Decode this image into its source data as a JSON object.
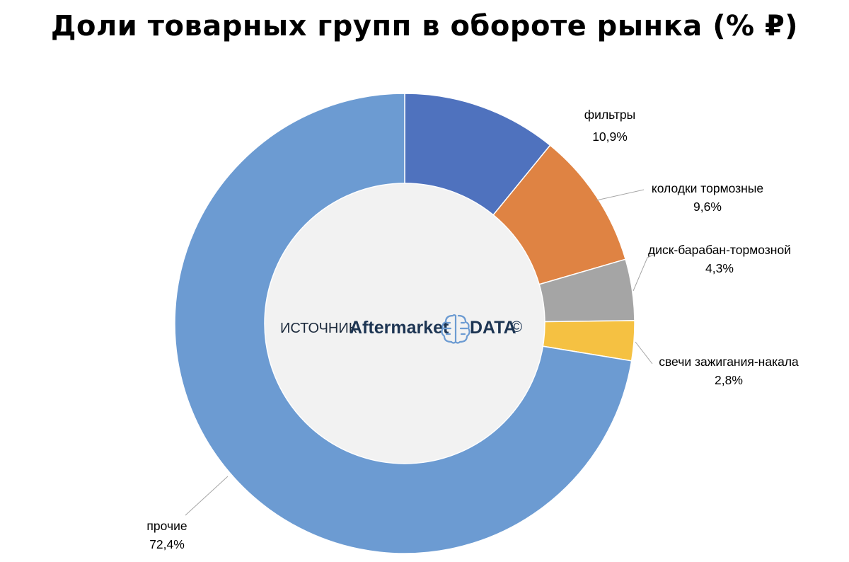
{
  "chart_data": {
    "type": "pie",
    "title": "Доли товарных групп в обороте рынка (% ₽)",
    "donut": true,
    "categories": [
      "фильтры",
      "колодки тормозные",
      "диск-барабан-тормозной",
      "свечи зажигания-накала",
      "прочие"
    ],
    "values": [
      10.9,
      9.6,
      4.3,
      2.8,
      72.4
    ],
    "value_labels": [
      "10,9%",
      "9,6%",
      "4,3%",
      "2,8%",
      "72,4%"
    ],
    "colors": [
      "#4f72be",
      "#df8343",
      "#a5a5a5",
      "#f5c142",
      "#6c9bd2"
    ],
    "center_fill": "#f2f2f2",
    "legend": "none"
  },
  "source": {
    "prefix": "ИСТОЧНИК",
    "brand": "Aftermarket",
    "brand_suffix": "DATA",
    "copyright": "©",
    "icon": "brain-icon"
  }
}
